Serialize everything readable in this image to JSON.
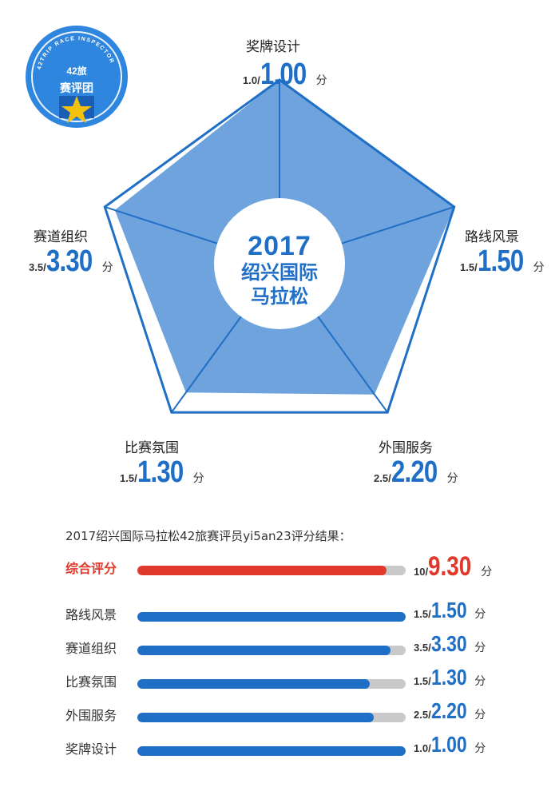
{
  "badge": {
    "arc_text": "42TRIP RACE INSPECTOR",
    "number": "42旅",
    "title": "赛评团"
  },
  "center": {
    "year": "2017",
    "name_line1": "绍兴国际",
    "name_line2": "马拉松"
  },
  "colors": {
    "blue": "#1f6fc6",
    "fill": "#6fa3dd",
    "red": "#e0392b",
    "track": "#c9c9c9"
  },
  "chart_data": [
    {
      "type": "radar",
      "axes": [
        {
          "name": "奖牌设计",
          "max_label": "1.0/",
          "max": 1.0,
          "value": 1.0,
          "value_label": "1.00",
          "unit": "分"
        },
        {
          "name": "路线风景",
          "max_label": "1.5/",
          "max": 1.5,
          "value": 1.5,
          "value_label": "1.50",
          "unit": "分"
        },
        {
          "name": "外围服务",
          "max_label": "2.5/",
          "max": 2.5,
          "value": 2.2,
          "value_label": "2.20",
          "unit": "分"
        },
        {
          "name": "比赛氛围",
          "max_label": "1.5/",
          "max": 1.5,
          "value": 1.3,
          "value_label": "1.30",
          "unit": "分"
        },
        {
          "name": "赛道组织",
          "max_label": "3.5/",
          "max": 3.5,
          "value": 3.3,
          "value_label": "3.30",
          "unit": "分"
        }
      ]
    },
    {
      "type": "bar",
      "title": "2017绍兴国际马拉松42旅赛评员yi5an23评分结果：",
      "categories": [
        "综合评分",
        "路线风景",
        "赛道组织",
        "比赛氛围",
        "外围服务",
        "奖牌设计"
      ],
      "max": [
        10,
        1.5,
        3.5,
        1.5,
        2.5,
        1.0
      ],
      "max_labels": [
        "10/",
        "1.5/",
        "3.5/",
        "1.5/",
        "2.5/",
        "1.0/"
      ],
      "values": [
        9.3,
        1.5,
        3.3,
        1.3,
        2.2,
        1.0
      ],
      "value_labels": [
        "9.30",
        "1.50",
        "3.30",
        "1.30",
        "2.20",
        "1.00"
      ],
      "unit": "分"
    }
  ]
}
